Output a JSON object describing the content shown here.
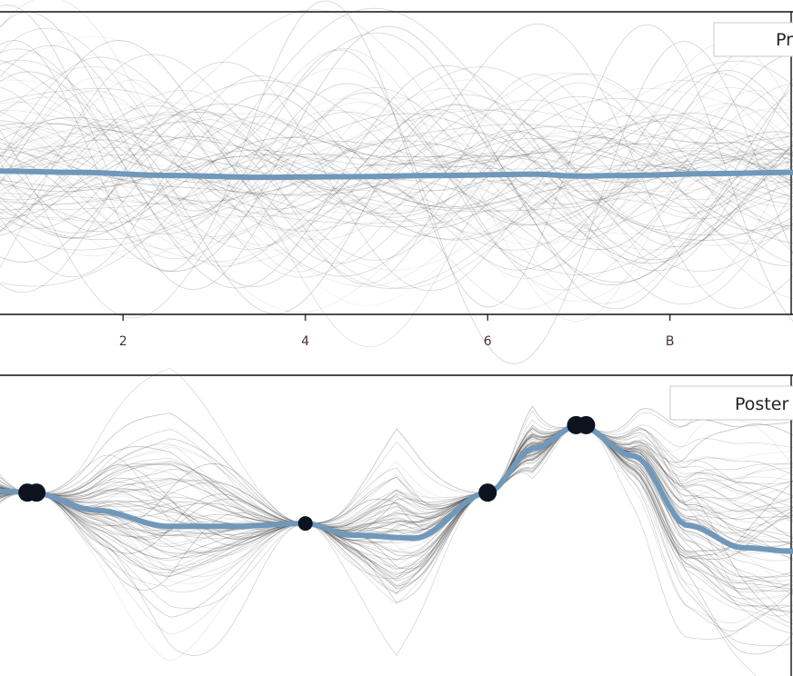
{
  "colors": {
    "mean_line": "#6f98bb",
    "sample_line": "#3a3a3a",
    "observation_point": "#0d1420",
    "axis": "#111111",
    "tick_label": "#4a2f3a"
  },
  "chart_data": [
    {
      "type": "line",
      "legend_label": "Pr",
      "legend_position": "top-right",
      "grid": false,
      "x_ticks": [
        "2",
        "4",
        "6",
        "B"
      ],
      "x_tick_values": [
        2,
        4,
        6,
        8
      ],
      "xlim": [
        0.65,
        9.35
      ],
      "ylim": [
        -2.3,
        2.6
      ],
      "mean_x": [
        0.65,
        1.5,
        2.5,
        3.5,
        4.5,
        5.5,
        6.5,
        7.0,
        7.5,
        8.5,
        9.35
      ],
      "mean_y": [
        0.02,
        0.0,
        -0.05,
        -0.08,
        -0.07,
        -0.05,
        -0.03,
        -0.06,
        -0.05,
        -0.02,
        0.0
      ],
      "sample_count": 90,
      "sample_std": 0.85
    },
    {
      "type": "line",
      "legend_label": "Poster",
      "legend_position": "top-right",
      "grid": false,
      "xlim": [
        0.65,
        9.35
      ],
      "ylim": [
        -2.5,
        1.6
      ],
      "observations": {
        "x": [
          0.95,
          1.05,
          4.0,
          6.0,
          6.97,
          7.08
        ],
        "y": [
          0.0,
          0.0,
          -0.42,
          0.0,
          0.92,
          0.92
        ]
      },
      "mean_x": [
        0.65,
        1.0,
        1.7,
        2.5,
        3.2,
        4.0,
        4.5,
        5.2,
        6.0,
        6.5,
        7.0,
        7.6,
        8.2,
        8.8,
        9.35
      ],
      "mean_y": [
        0.02,
        0.0,
        -0.24,
        -0.46,
        -0.46,
        -0.42,
        -0.58,
        -0.62,
        0.0,
        0.6,
        0.92,
        0.5,
        -0.45,
        -0.75,
        -0.8
      ],
      "sample_count": 80
    }
  ]
}
